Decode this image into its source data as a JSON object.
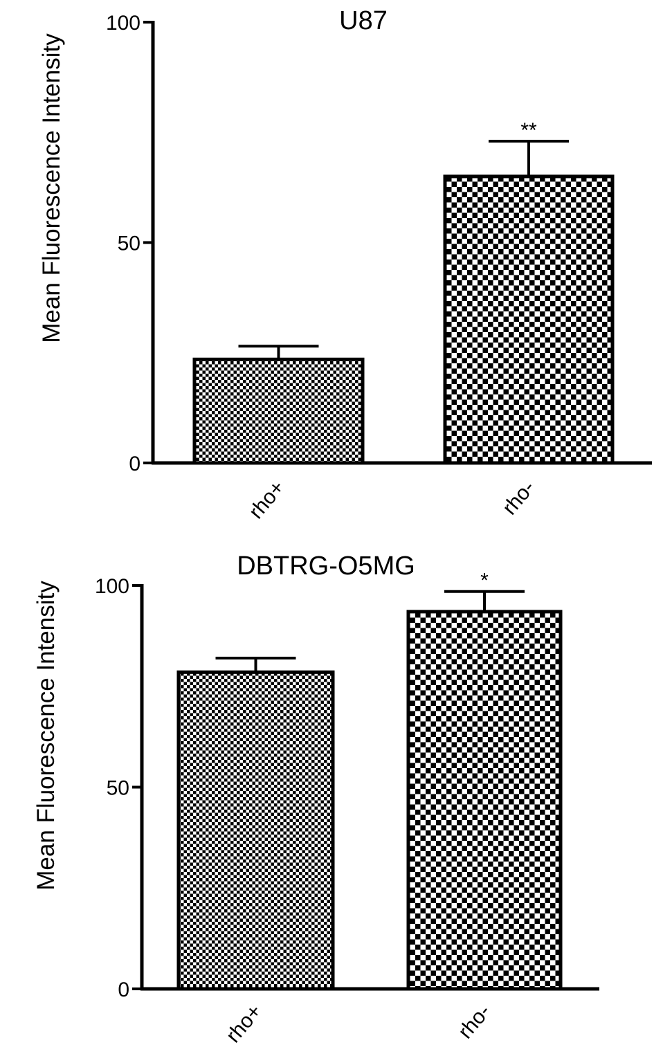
{
  "chart_data": [
    {
      "type": "bar",
      "title": "U87",
      "ylabel": "Mean Fluorescence Intensity",
      "xlabel": "",
      "categories": [
        "rho+",
        "rho-"
      ],
      "values": [
        23.5,
        65
      ],
      "errors": [
        3,
        8
      ],
      "significance": [
        "",
        "**"
      ],
      "patterns": [
        "fine-check",
        "coarse-check"
      ],
      "ylim": [
        0,
        100
      ],
      "yticks": [
        0,
        50,
        100
      ],
      "ytick_labels": [
        "0",
        "50",
        "100"
      ],
      "grid": false
    },
    {
      "type": "bar",
      "title": "DBTRG-O5MG",
      "ylabel": "Mean Fluorescence Intensity",
      "xlabel": "",
      "categories": [
        "rho+",
        "rho-"
      ],
      "values": [
        78.5,
        93.5
      ],
      "errors": [
        3.5,
        5
      ],
      "significance": [
        "",
        "*"
      ],
      "patterns": [
        "fine-check",
        "coarse-check"
      ],
      "ylim": [
        0,
        100
      ],
      "yticks": [
        0,
        50,
        100
      ],
      "ytick_labels": [
        "0",
        "50",
        "100"
      ],
      "grid": false
    }
  ]
}
